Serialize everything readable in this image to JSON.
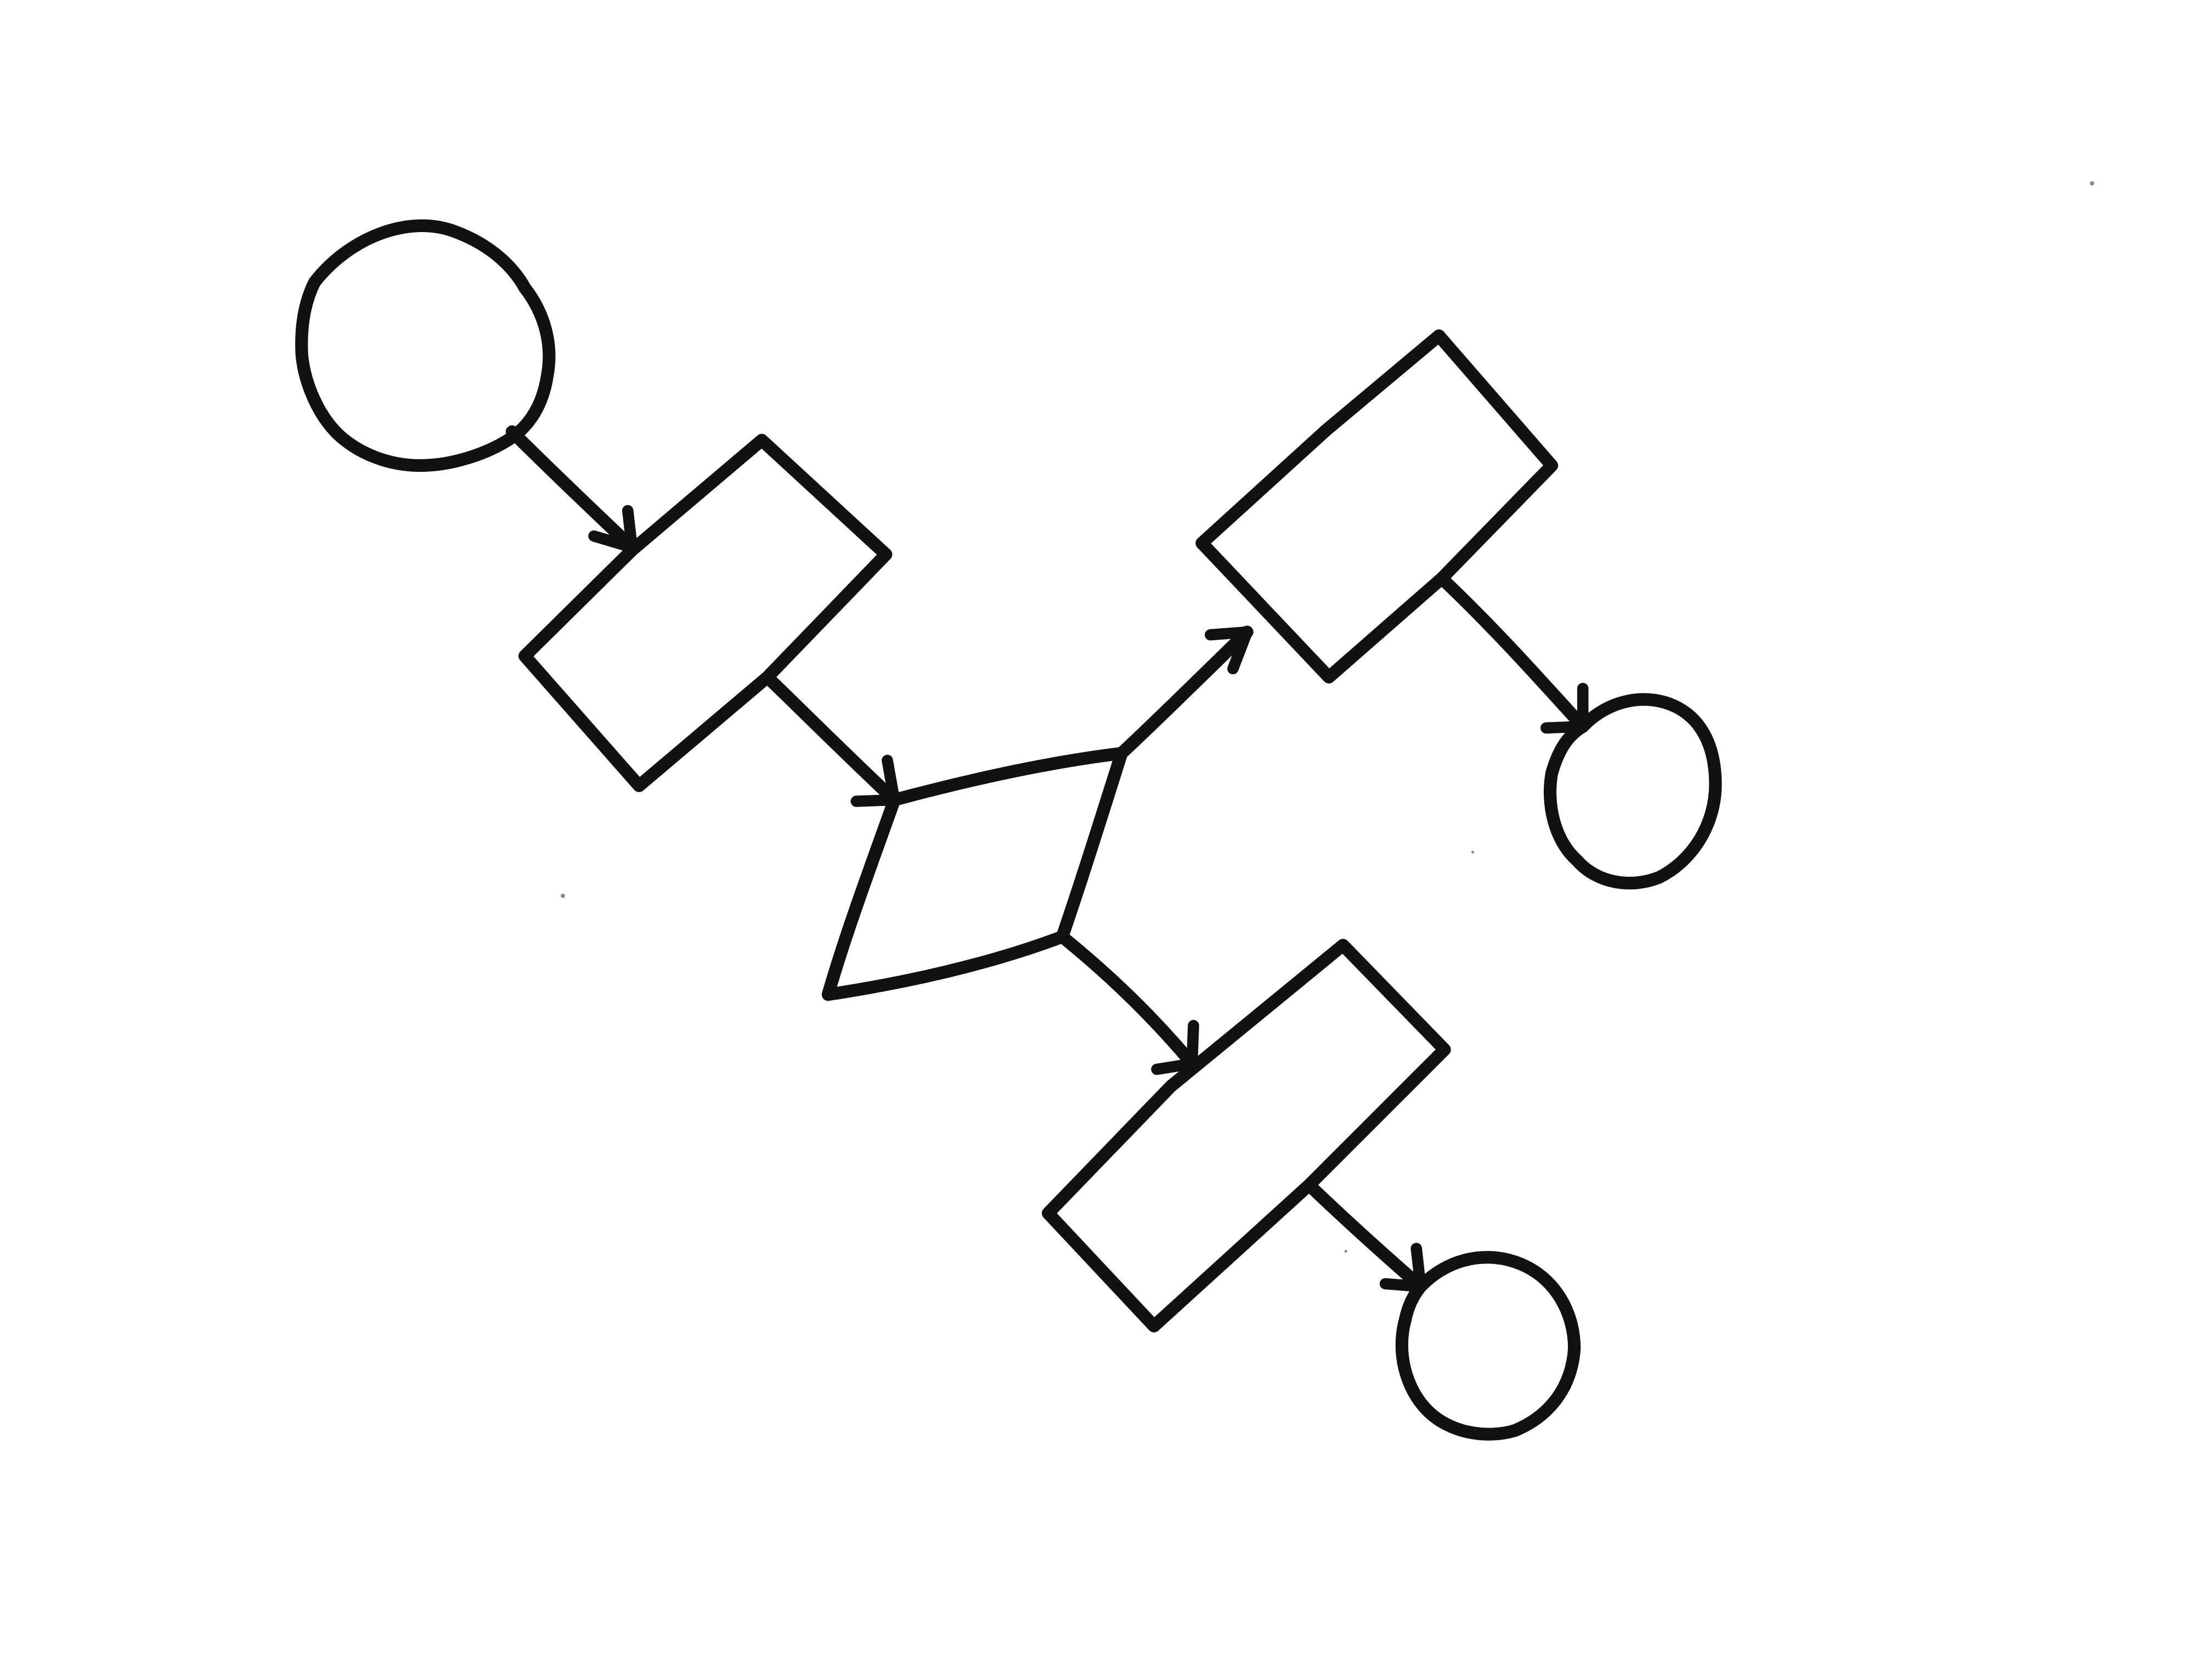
{
  "diagram": {
    "kind": "hand-drawn flowchart sketch",
    "colors": {
      "background": "#ffffff",
      "ink": "#111111"
    },
    "nodes": [
      {
        "id": "start",
        "shape": "circle",
        "label": ""
      },
      {
        "id": "process-1",
        "shape": "rectangle",
        "label": ""
      },
      {
        "id": "decision",
        "shape": "parallelogram",
        "label": ""
      },
      {
        "id": "process-upper",
        "shape": "rectangle",
        "label": ""
      },
      {
        "id": "process-lower",
        "shape": "rectangle",
        "label": ""
      },
      {
        "id": "end-upper",
        "shape": "circle",
        "label": ""
      },
      {
        "id": "end-lower",
        "shape": "circle",
        "label": ""
      }
    ],
    "edges": [
      {
        "from": "start",
        "to": "process-1",
        "arrow": true
      },
      {
        "from": "process-1",
        "to": "decision",
        "arrow": true
      },
      {
        "from": "decision",
        "to": "process-upper",
        "arrow": true
      },
      {
        "from": "decision",
        "to": "process-lower",
        "arrow": true
      },
      {
        "from": "process-upper",
        "to": "end-upper",
        "arrow": true
      },
      {
        "from": "process-lower",
        "to": "end-lower",
        "arrow": true
      }
    ]
  }
}
